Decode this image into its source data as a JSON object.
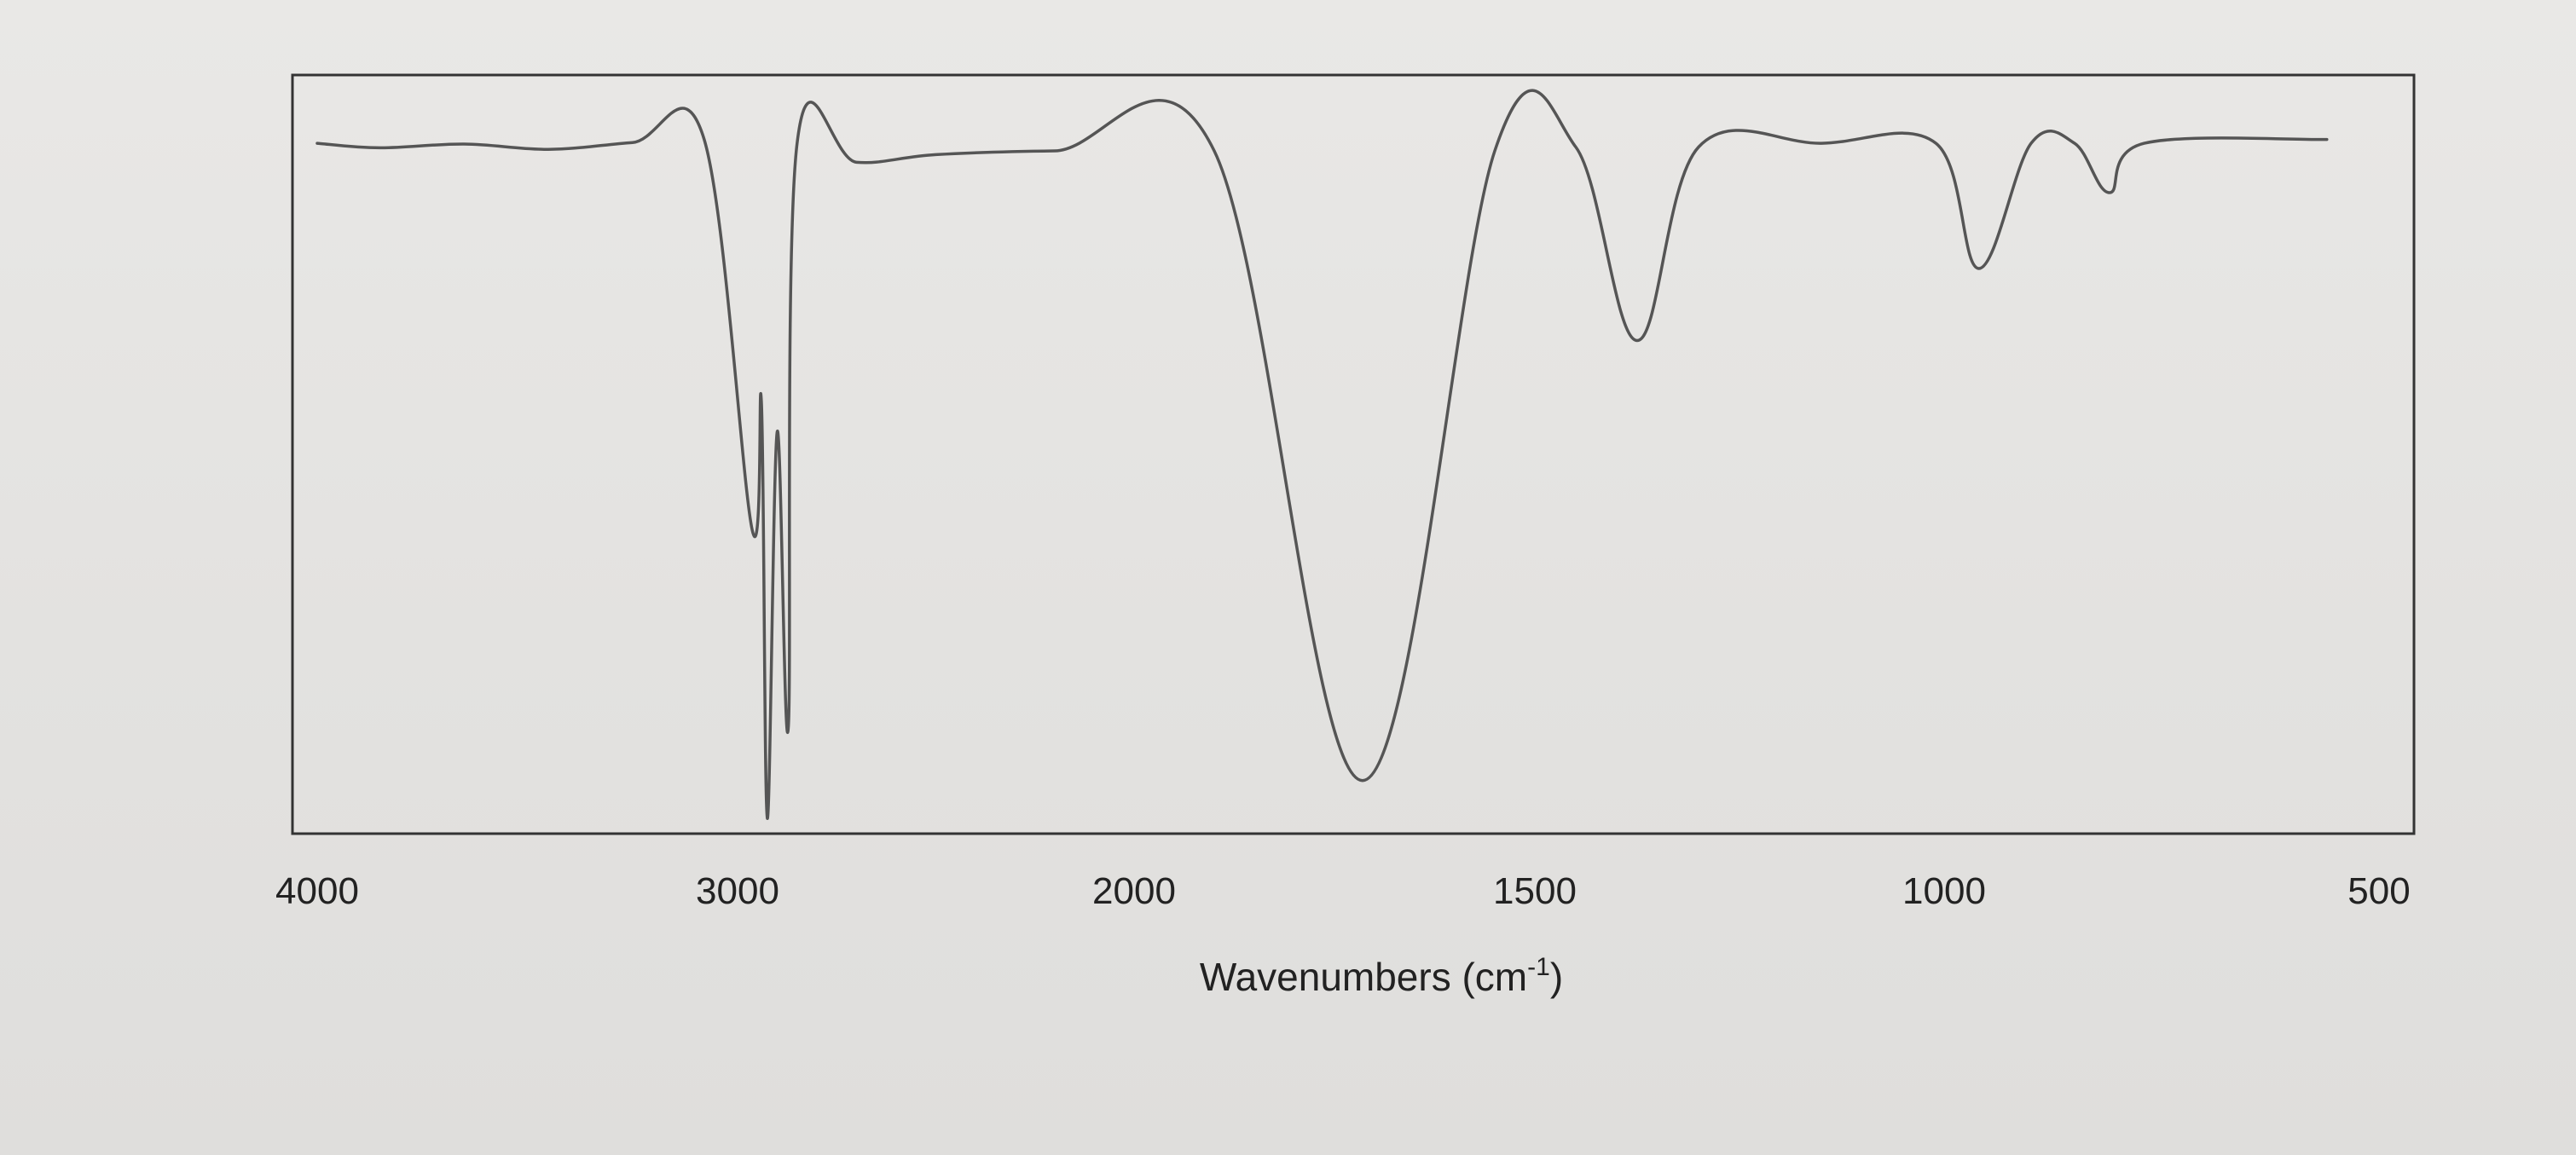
{
  "chart_data": {
    "type": "line",
    "title": "",
    "xlabel": "Wavenumbers (cm-1)",
    "xlabel_main": "Wavenumbers (cm",
    "xlabel_sup": "-1",
    "xlabel_close": ")",
    "ylabel": "",
    "x_axis_reversed": true,
    "xlim": [
      4000,
      500
    ],
    "x_ticks": [
      {
        "value": 4000,
        "label": "4000"
      },
      {
        "value": 3000,
        "label": "3000"
      },
      {
        "value": 2000,
        "label": "2000"
      },
      {
        "value": 1500,
        "label": "1500"
      },
      {
        "value": 1000,
        "label": "1000"
      },
      {
        "value": 500,
        "label": "500"
      }
    ],
    "y_ticks_shown": false,
    "ylim": [
      0,
      100
    ],
    "grid": false,
    "line_color": "#555555",
    "baseline_transmittance": 91,
    "series": [
      {
        "points": [
          {
            "x": 4000,
            "y": 91.0
          },
          {
            "x": 3850,
            "y": 90.4
          },
          {
            "x": 3650,
            "y": 90.9
          },
          {
            "x": 3450,
            "y": 90.2
          },
          {
            "x": 3250,
            "y": 91.1
          },
          {
            "x": 3080,
            "y": 91.6
          },
          {
            "x": 2963,
            "y": 40.0
          },
          {
            "x": 2940,
            "y": 57.0
          },
          {
            "x": 2925,
            "y": 2.0
          },
          {
            "x": 2900,
            "y": 53.0
          },
          {
            "x": 2872,
            "y": 14.0
          },
          {
            "x": 2850,
            "y": 91.0
          },
          {
            "x": 2700,
            "y": 88.5
          },
          {
            "x": 2500,
            "y": 89.5
          },
          {
            "x": 2200,
            "y": 90.0
          },
          {
            "x": 1900,
            "y": 90.0
          },
          {
            "x": 1715,
            "y": 7.0
          },
          {
            "x": 1550,
            "y": 90.0
          },
          {
            "x": 1450,
            "y": 90.5
          },
          {
            "x": 1375,
            "y": 65.0
          },
          {
            "x": 1300,
            "y": 90.5
          },
          {
            "x": 1150,
            "y": 91.0
          },
          {
            "x": 1010,
            "y": 91.0
          },
          {
            "x": 960,
            "y": 74.5
          },
          {
            "x": 900,
            "y": 91.0
          },
          {
            "x": 850,
            "y": 91.0
          },
          {
            "x": 810,
            "y": 84.5
          },
          {
            "x": 770,
            "y": 91.0
          },
          {
            "x": 560,
            "y": 91.5
          }
        ]
      }
    ]
  }
}
